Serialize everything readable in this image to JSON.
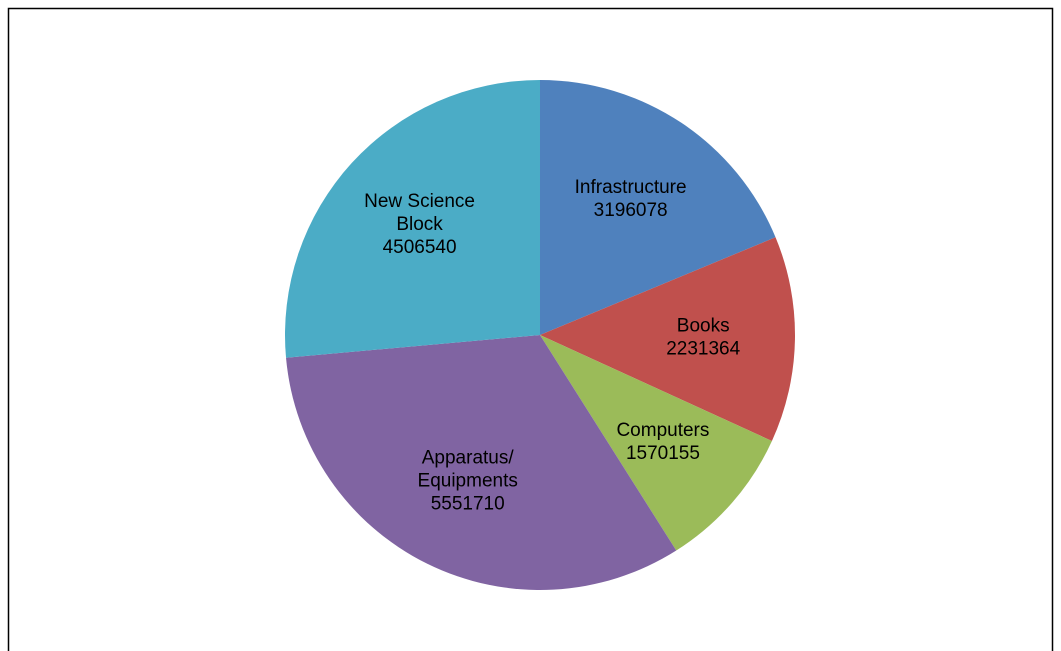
{
  "chart_data": {
    "type": "pie",
    "categories": [
      "Infrastructure",
      "Books",
      "Computers",
      "Apparatus/ Equipments",
      "New Science Block"
    ],
    "values": [
      3196078,
      2231364,
      1570155,
      5551710,
      4506540
    ],
    "colors": [
      "#4f81bd",
      "#c0504d",
      "#9bbb59",
      "#8064a2",
      "#4bacc6"
    ]
  }
}
